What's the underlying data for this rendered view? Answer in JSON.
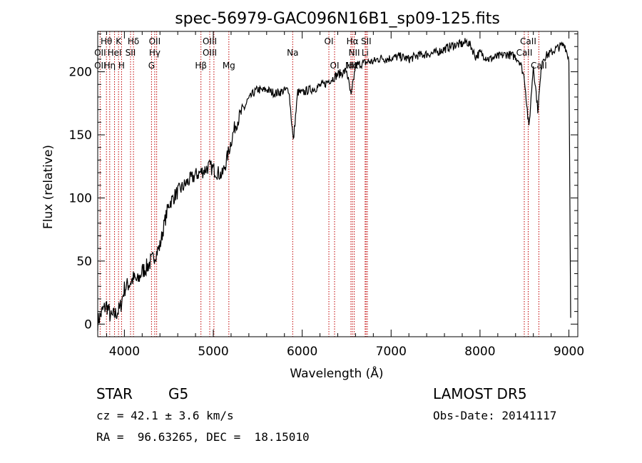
{
  "chart_data": {
    "type": "line",
    "title": "spec-56979-GAC096N16B1_sp09-125.fits",
    "xlabel": "Wavelength (Å)",
    "ylabel": "Flux (relative)",
    "xlim": [
      3700,
      9100
    ],
    "ylim": [
      -10,
      232
    ],
    "x_ticks": [
      4000,
      5000,
      6000,
      7000,
      8000,
      9000
    ],
    "y_ticks": [
      0,
      50,
      100,
      150,
      200
    ],
    "grid": false,
    "series": [
      {
        "x": [
          3700,
          3750,
          3800,
          3850,
          3900,
          3950,
          4000,
          4050,
          4100,
          4150,
          4200,
          4250,
          4300,
          4350,
          4400,
          4450,
          4500,
          4550,
          4600,
          4650,
          4700,
          4750,
          4800,
          4850,
          4900,
          4950,
          5000,
          5050,
          5100,
          5150,
          5200,
          5250,
          5300,
          5350,
          5400,
          5450,
          5500,
          5550,
          5600,
          5650,
          5700,
          5750,
          5800,
          5850,
          5900,
          5950,
          6000,
          6050,
          6100,
          6150,
          6200,
          6250,
          6300,
          6350,
          6400,
          6450,
          6500,
          6550,
          6600,
          6650,
          6700,
          6750,
          6800,
          6850,
          6900,
          6950,
          7000,
          7100,
          7200,
          7300,
          7400,
          7500,
          7600,
          7700,
          7800,
          7850,
          7900,
          7950,
          8000,
          8100,
          8200,
          8300,
          8400,
          8450,
          8500,
          8550,
          8600,
          8650,
          8700,
          8750,
          8800,
          8850,
          8900,
          8950,
          9000,
          9020
        ],
        "y": [
          2,
          10,
          15,
          5,
          8,
          12,
          28,
          32,
          36,
          34,
          42,
          45,
          50,
          55,
          62,
          80,
          95,
          100,
          105,
          108,
          112,
          115,
          118,
          120,
          122,
          125,
          123,
          120,
          118,
          130,
          145,
          158,
          165,
          172,
          178,
          183,
          186,
          185,
          186,
          184,
          183,
          184,
          185,
          186,
          145,
          184,
          183,
          185,
          186,
          187,
          189,
          190,
          193,
          195,
          198,
          199,
          201,
          180,
          205,
          206,
          207,
          208,
          208,
          210,
          211,
          210,
          211,
          212,
          210,
          213,
          214,
          215,
          218,
          221,
          222,
          224,
          220,
          212,
          215,
          210,
          212,
          214,
          212,
          208,
          195,
          155,
          205,
          170,
          210,
          213,
          215,
          218,
          220,
          222,
          210,
          5
        ]
      }
    ],
    "lines": [
      {
        "name": "Hθ",
        "wl": 3798,
        "row": 1
      },
      {
        "name": "K",
        "wl": 3934,
        "row": 1
      },
      {
        "name": "Hδ",
        "wl": 4102,
        "row": 1
      },
      {
        "name": "OII",
        "wl": 4341,
        "row": 1
      },
      {
        "name": "OIII",
        "wl": 4960,
        "row": 1
      },
      {
        "name": "OI",
        "wl": 6300,
        "row": 1
      },
      {
        "name": "Hα",
        "wl": 6565,
        "row": 1
      },
      {
        "name": "SII",
        "wl": 6720,
        "row": 1
      },
      {
        "name": "CaII",
        "wl": 8542,
        "row": 1
      },
      {
        "name": "OII",
        "wl": 3727,
        "row": 2
      },
      {
        "name": "HeI",
        "wl": 3889,
        "row": 2
      },
      {
        "name": "SII",
        "wl": 4069,
        "row": 2
      },
      {
        "name": "Hγ",
        "wl": 4341,
        "row": 2
      },
      {
        "name": "OIII",
        "wl": 4960,
        "row": 2
      },
      {
        "name": "Na",
        "wl": 5893,
        "row": 2
      },
      {
        "name": "NII",
        "wl": 6585,
        "row": 2
      },
      {
        "name": "Li",
        "wl": 6708,
        "row": 2
      },
      {
        "name": "CaII",
        "wl": 8498,
        "row": 2
      },
      {
        "name": "OII",
        "wl": 3727,
        "row": 3
      },
      {
        "name": "Hη",
        "wl": 3835,
        "row": 3
      },
      {
        "name": "H",
        "wl": 3968,
        "row": 3
      },
      {
        "name": "G",
        "wl": 4305,
        "row": 3
      },
      {
        "name": "Hβ",
        "wl": 4861,
        "row": 3
      },
      {
        "name": "Mg",
        "wl": 5175,
        "row": 3
      },
      {
        "name": "OI",
        "wl": 6364,
        "row": 3
      },
      {
        "name": "NII",
        "wl": 6548,
        "row": 3
      },
      {
        "name": "Hα",
        "wl": 6565,
        "row": 3
      },
      {
        "name": "CaII",
        "wl": 8662,
        "row": 3
      }
    ],
    "line_positions": [
      3727,
      3798,
      3835,
      3889,
      3934,
      3968,
      4069,
      4102,
      4305,
      4341,
      4363,
      4861,
      4960,
      5007,
      5175,
      5893,
      6300,
      6364,
      6548,
      6565,
      6585,
      6708,
      6718,
      6733,
      8498,
      8542,
      8662
    ]
  },
  "info": {
    "object_class": "STAR",
    "subclass": "G5",
    "cz": "cz = 42.1 ± 3.6 km/s",
    "survey": "LAMOST DR5",
    "obs_date": "Obs-Date: 20141117",
    "coords": "RA =  96.63265, DEC =  18.15010"
  },
  "colors": {
    "spectrum": "#000000",
    "line_marker": "#c00000"
  }
}
